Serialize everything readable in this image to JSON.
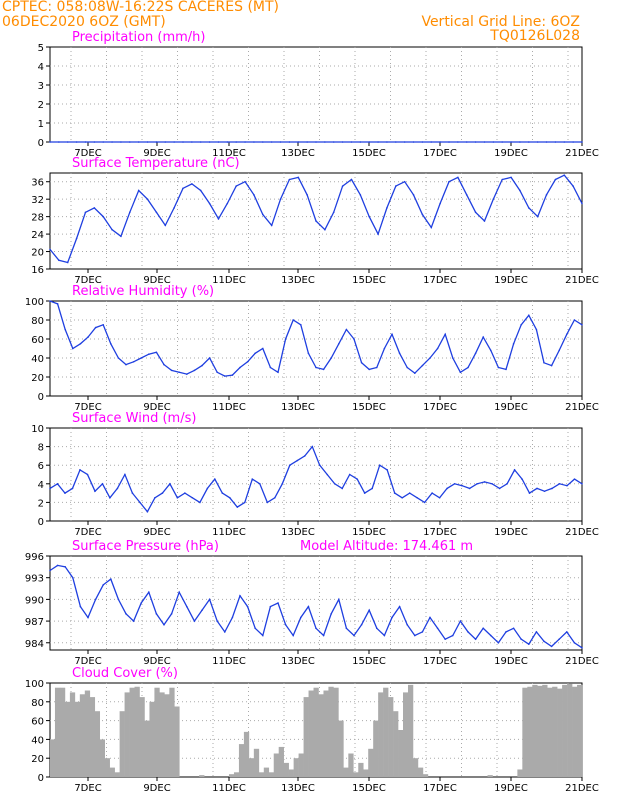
{
  "header": {
    "line1_left": "CPTEC:  058:08W-16:22S  CACERES (MT)",
    "line2_left": "06DEC2020 6OZ (GMT)",
    "line1_right": "Vertical Grid Line: 6OZ",
    "line2_right": "TQ0126L028"
  },
  "colors": {
    "header_text": "#ff8c00",
    "panel_title": "#ff00ff",
    "series_line": "#1f3fe0",
    "cloud_bars": "#aaaaaa",
    "grid": "#aaaaaa"
  },
  "chart_data": [
    {
      "type": "line",
      "title": "Precipitation (mm/h)",
      "x_tick_labels": [
        "7DEC",
        "9DEC",
        "11DEC",
        "13DEC",
        "15DEC",
        "17DEC",
        "19DEC",
        "21DEC"
      ],
      "ylim": [
        0,
        5
      ],
      "y_ticks": [
        0,
        1,
        2,
        3,
        4,
        5
      ],
      "y_tick_labels": [
        "0",
        "1",
        "2",
        "3",
        "4",
        "5"
      ],
      "grid": true,
      "series": [
        {
          "values": [
            0,
            0,
            0,
            0,
            0,
            0,
            0,
            0,
            0,
            0,
            0,
            0,
            0,
            0,
            0,
            0,
            0,
            0,
            0,
            0,
            0,
            0,
            0,
            0,
            0,
            0,
            0,
            0,
            0,
            0,
            0,
            0,
            0,
            0,
            0,
            0,
            0,
            0,
            0,
            0,
            0,
            0,
            0,
            0,
            0,
            0,
            0,
            0,
            0,
            0,
            0,
            0,
            0,
            0,
            0,
            0,
            0,
            0,
            0,
            0,
            0
          ]
        }
      ]
    },
    {
      "type": "line",
      "title": "Surface Temperature (nC)",
      "x_tick_labels": [
        "7DEC",
        "9DEC",
        "11DEC",
        "13DEC",
        "15DEC",
        "17DEC",
        "19DEC",
        "21DEC"
      ],
      "ylim": [
        16,
        38
      ],
      "y_ticks": [
        16,
        20,
        24,
        28,
        32,
        36
      ],
      "y_tick_labels": [
        "16",
        "20",
        "24",
        "28",
        "32",
        "36"
      ],
      "grid": true,
      "series": [
        {
          "values": [
            20.5,
            18,
            17.5,
            23,
            29,
            30,
            28,
            25,
            23.5,
            29,
            34,
            32,
            29,
            26,
            30,
            34.5,
            35.5,
            34,
            31,
            27.5,
            31,
            35,
            36,
            33,
            28.5,
            26,
            32,
            36.5,
            37,
            33,
            27,
            25,
            29,
            35,
            36.5,
            33,
            28,
            24,
            30,
            35,
            36,
            33,
            28.5,
            25.5,
            31,
            36,
            37,
            33,
            29,
            27,
            32,
            36.5,
            37,
            34,
            30,
            28,
            33,
            36.5,
            37.5,
            35,
            31
          ]
        }
      ]
    },
    {
      "type": "line",
      "title": "Relative Humidity (%)",
      "x_tick_labels": [
        "7DEC",
        "9DEC",
        "11DEC",
        "13DEC",
        "15DEC",
        "17DEC",
        "19DEC",
        "21DEC"
      ],
      "ylim": [
        0,
        100
      ],
      "y_ticks": [
        0,
        20,
        40,
        60,
        80,
        100
      ],
      "y_tick_labels": [
        "0",
        "20",
        "40",
        "60",
        "80",
        "100"
      ],
      "grid": true,
      "series": [
        {
          "values": [
            100,
            97,
            70,
            50,
            55,
            62,
            72,
            75,
            55,
            40,
            33,
            36,
            40,
            44,
            46,
            33,
            27,
            25,
            23,
            27,
            32,
            40,
            25,
            21,
            22,
            30,
            36,
            45,
            50,
            30,
            25,
            60,
            80,
            75,
            45,
            30,
            28,
            40,
            55,
            70,
            60,
            35,
            28,
            30,
            50,
            65,
            45,
            30,
            24,
            32,
            40,
            50,
            65,
            40,
            25,
            30,
            45,
            62,
            48,
            30,
            28,
            55,
            75,
            85,
            70,
            35,
            32,
            48,
            65,
            80,
            75
          ]
        }
      ]
    },
    {
      "type": "line",
      "title": "Surface Wind (m/s)",
      "x_tick_labels": [
        "7DEC",
        "9DEC",
        "11DEC",
        "13DEC",
        "15DEC",
        "17DEC",
        "19DEC",
        "21DEC"
      ],
      "ylim": [
        0,
        10
      ],
      "y_ticks": [
        0,
        2,
        4,
        6,
        8,
        10
      ],
      "y_tick_labels": [
        "0",
        "2",
        "4",
        "6",
        "8",
        "10"
      ],
      "grid": true,
      "series": [
        {
          "values": [
            3.5,
            4,
            3,
            3.5,
            5.5,
            5,
            3.2,
            4,
            2.5,
            3.5,
            5,
            3,
            2,
            1,
            2.5,
            3,
            4,
            2.5,
            3,
            2.5,
            2,
            3.5,
            4.5,
            3,
            2.5,
            1.5,
            2,
            4.5,
            4,
            2,
            2.5,
            4,
            6,
            6.5,
            7,
            8,
            6,
            5,
            4,
            3.5,
            5,
            4.5,
            3,
            3.5,
            6,
            5.5,
            3,
            2.5,
            3,
            2.5,
            2,
            3,
            2.5,
            3.5,
            4,
            3.8,
            3.5,
            4,
            4.2,
            4,
            3.5,
            4,
            5.5,
            4.5,
            3,
            3.5,
            3.2,
            3.5,
            4,
            3.8,
            4.5,
            4
          ]
        }
      ]
    },
    {
      "type": "line",
      "title": "Surface Pressure (hPa)",
      "annotation": "Model Altitude: 174.461 m",
      "x_tick_labels": [
        "7DEC",
        "9DEC",
        "11DEC",
        "13DEC",
        "15DEC",
        "17DEC",
        "19DEC",
        "21DEC"
      ],
      "ylim": [
        983,
        996
      ],
      "y_ticks": [
        984,
        987,
        990,
        993,
        996
      ],
      "y_tick_labels": [
        "984",
        "987",
        "990",
        "993",
        "996"
      ],
      "grid": true,
      "series": [
        {
          "values": [
            994,
            994.7,
            994.5,
            993,
            989,
            987.5,
            990,
            992,
            992.8,
            990,
            988,
            987,
            989.5,
            991,
            988,
            986.5,
            988,
            991,
            989,
            987,
            988.5,
            990,
            987,
            985.5,
            987.5,
            990.5,
            989,
            986,
            985,
            989,
            989.5,
            986.5,
            985,
            987.5,
            989,
            986,
            985,
            988,
            990,
            986,
            985,
            986.5,
            988.5,
            986,
            985,
            987.5,
            989,
            986.5,
            985,
            985.5,
            987.5,
            986,
            984.5,
            985,
            987,
            985.5,
            984.5,
            986,
            985,
            984,
            985.5,
            986,
            984.5,
            983.8,
            985.5,
            984.2,
            983.5,
            984.5,
            985.5,
            984,
            983.3
          ]
        }
      ]
    },
    {
      "type": "bar",
      "title": "Cloud Cover (%)",
      "x_tick_labels": [
        "7DEC",
        "9DEC",
        "11DEC",
        "13DEC",
        "15DEC",
        "17DEC",
        "19DEC",
        "21DEC"
      ],
      "ylim": [
        0,
        100
      ],
      "y_ticks": [
        0,
        20,
        40,
        60,
        80,
        100
      ],
      "y_tick_labels": [
        "0",
        "20",
        "40",
        "60",
        "80",
        "100"
      ],
      "grid": true,
      "series": [
        {
          "values": [
            40,
            95,
            95,
            80,
            90,
            80,
            88,
            92,
            85,
            70,
            40,
            20,
            10,
            5,
            70,
            90,
            95,
            96,
            85,
            60,
            80,
            95,
            90,
            88,
            95,
            75,
            0,
            0,
            0,
            0,
            2,
            0,
            0,
            0,
            0,
            0,
            3,
            5,
            35,
            48,
            20,
            30,
            5,
            10,
            5,
            25,
            32,
            15,
            8,
            20,
            25,
            85,
            92,
            95,
            88,
            92,
            96,
            95,
            60,
            10,
            25,
            5,
            15,
            8,
            30,
            60,
            90,
            95,
            85,
            70,
            50,
            90,
            98,
            20,
            10,
            3,
            0,
            0,
            0,
            0,
            0,
            0,
            0,
            0,
            0,
            0,
            0,
            0,
            2,
            0,
            0,
            0,
            0,
            0,
            8,
            95,
            96,
            98,
            97,
            98,
            95,
            96,
            94,
            98,
            99,
            96,
            98
          ]
        }
      ]
    }
  ]
}
